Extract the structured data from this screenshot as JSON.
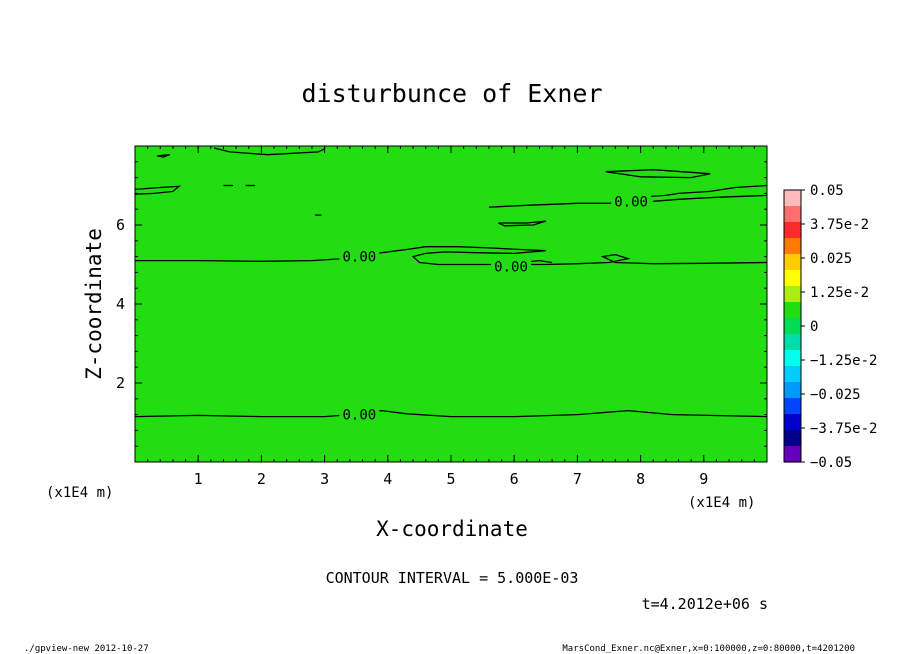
{
  "chart_data": {
    "type": "contour",
    "title": "disturbunce of Exner",
    "xlabel": "X-coordinate",
    "ylabel": "Z-coordinate",
    "x_unit_label": "(x1E4 m)",
    "y_unit_label": "(x1E4 m)",
    "xlim": [
      0,
      10
    ],
    "ylim": [
      0,
      8
    ],
    "x_ticks": [
      "1",
      "2",
      "3",
      "4",
      "5",
      "6",
      "7",
      "8",
      "9"
    ],
    "y_ticks": [
      "2",
      "4",
      "6"
    ],
    "field_color": "#22dd11",
    "contour_interval_text": "CONTOUR INTERVAL = 5.000E-03",
    "time_text": "t=4.2012e+06 s",
    "contour_labels": [
      {
        "text": "0.00",
        "x": 3.55,
        "y": 1.2
      },
      {
        "text": "0.00",
        "x": 3.55,
        "y": 5.2
      },
      {
        "text": "0.00",
        "x": 5.95,
        "y": 4.95
      },
      {
        "text": "0.00",
        "x": 7.85,
        "y": 6.6
      }
    ],
    "contours": [
      [
        [
          0,
          1.15
        ],
        [
          1,
          1.18
        ],
        [
          2,
          1.15
        ],
        [
          3,
          1.15
        ],
        [
          3.4,
          1.2
        ],
        [
          3.9,
          1.3
        ],
        [
          4.3,
          1.22
        ],
        [
          5,
          1.15
        ],
        [
          6,
          1.15
        ],
        [
          7,
          1.2
        ],
        [
          7.8,
          1.3
        ],
        [
          8.5,
          1.2
        ],
        [
          10,
          1.15
        ]
      ],
      [
        [
          0,
          5.1
        ],
        [
          1,
          5.1
        ],
        [
          2,
          5.08
        ],
        [
          2.8,
          5.1
        ],
        [
          3.3,
          5.15
        ],
        [
          3.55,
          5.25
        ],
        [
          3.9,
          5.3
        ],
        [
          4.3,
          5.38
        ],
        [
          4.6,
          5.45
        ],
        [
          5.1,
          5.45
        ],
        [
          5.6,
          5.42
        ],
        [
          6.1,
          5.38
        ],
        [
          6.5,
          5.35
        ],
        [
          6.0,
          5.28
        ],
        [
          5.4,
          5.3
        ],
        [
          4.9,
          5.32
        ],
        [
          4.6,
          5.28
        ],
        [
          4.4,
          5.2
        ],
        [
          4.5,
          5.05
        ],
        [
          4.8,
          5.0
        ],
        [
          5.2,
          5.0
        ],
        [
          5.55,
          5.0
        ],
        [
          6.5,
          5.0
        ],
        [
          7.0,
          5.02
        ],
        [
          7.5,
          5.05
        ],
        [
          7.8,
          5.15
        ],
        [
          7.6,
          5.25
        ],
        [
          7.4,
          5.2
        ],
        [
          7.6,
          5.05
        ],
        [
          8.2,
          5.02
        ],
        [
          9,
          5.03
        ],
        [
          10,
          5.05
        ]
      ],
      [
        [
          5.6,
          6.45
        ],
        [
          6.2,
          6.5
        ],
        [
          7.0,
          6.55
        ],
        [
          7.5,
          6.55
        ],
        [
          7.8,
          6.6
        ],
        [
          8.1,
          6.72
        ],
        [
          8.4,
          6.75
        ],
        [
          8.6,
          6.8
        ],
        [
          9.1,
          6.85
        ],
        [
          9.5,
          6.95
        ],
        [
          10,
          7.0
        ]
      ],
      [
        [
          8.2,
          6.6
        ],
        [
          8.6,
          6.65
        ],
        [
          9.2,
          6.7
        ],
        [
          10,
          6.75
        ]
      ],
      [
        [
          0,
          6.9
        ],
        [
          0.4,
          6.95
        ],
        [
          0.7,
          6.98
        ],
        [
          0.6,
          6.85
        ],
        [
          0.3,
          6.8
        ],
        [
          0,
          6.78
        ]
      ],
      [
        [
          5.75,
          6.05
        ],
        [
          6.2,
          6.05
        ],
        [
          6.5,
          6.1
        ],
        [
          6.3,
          6.0
        ],
        [
          5.85,
          5.98
        ],
        [
          5.75,
          6.05
        ]
      ],
      [
        [
          7.45,
          7.35
        ],
        [
          8.2,
          7.4
        ],
        [
          9.1,
          7.3
        ],
        [
          8.8,
          7.2
        ],
        [
          8.0,
          7.22
        ],
        [
          7.45,
          7.35
        ]
      ],
      [
        [
          1.25,
          7.95
        ],
        [
          1.5,
          7.85
        ],
        [
          2.1,
          7.78
        ],
        [
          2.9,
          7.85
        ],
        [
          3.0,
          7.93
        ]
      ],
      [
        [
          0.35,
          7.75
        ],
        [
          0.55,
          7.78
        ],
        [
          0.45,
          7.72
        ],
        [
          0.35,
          7.75
        ]
      ],
      [
        [
          1.4,
          7.0
        ],
        [
          1.55,
          7.0
        ]
      ],
      [
        [
          1.75,
          7.0
        ],
        [
          1.9,
          7.0
        ]
      ],
      [
        [
          2.85,
          6.25
        ],
        [
          2.95,
          6.25
        ]
      ],
      [
        [
          6.1,
          5.05
        ],
        [
          6.4,
          5.1
        ],
        [
          6.6,
          5.05
        ]
      ]
    ],
    "colorbar": {
      "labels": [
        "0.05",
        "3.75e-2",
        "0.025",
        "1.25e-2",
        "0",
        "−1.25e-2",
        "−0.025",
        "−3.75e-2",
        "−0.05"
      ],
      "colors": [
        "#ffbbbb",
        "#ff6e6e",
        "#ff2a2a",
        "#ff7a00",
        "#ffcc00",
        "#ffff00",
        "#aaee11",
        "#22dd11",
        "#00dd55",
        "#00ddaa",
        "#00ffee",
        "#00ccff",
        "#0099ff",
        "#0044ff",
        "#0000cc",
        "#000088",
        "#6600bb"
      ]
    },
    "footer_left": "./gpview-new   2012-10-27",
    "footer_right": "MarsCond_Exner.nc@Exner,x=0:100000,z=0:80000,t=4201200"
  }
}
